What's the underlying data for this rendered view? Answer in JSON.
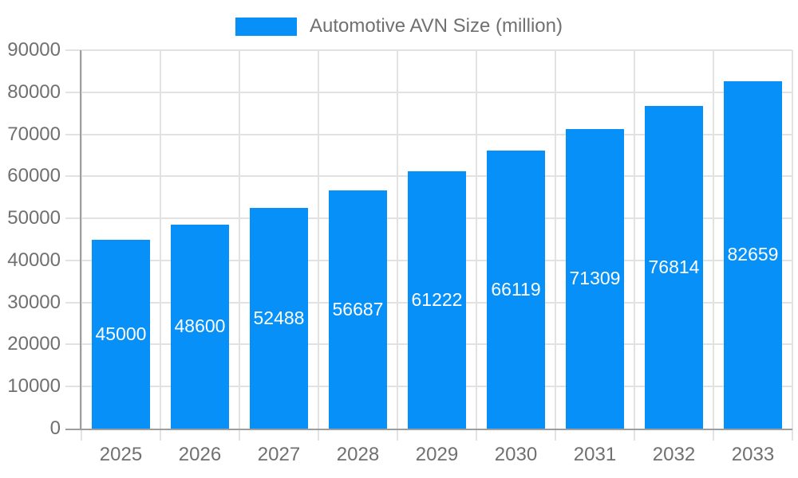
{
  "legend": {
    "label": "Automotive AVN Size (million)"
  },
  "colors": {
    "bar": "#0690F8",
    "grid": "#E2E2E2",
    "axis": "#9E9E9E",
    "text": "#707070",
    "value_label": "#FFFFFF",
    "background": "#FFFFFF"
  },
  "chart_data": {
    "type": "bar",
    "title": "",
    "series_name": "Automotive AVN Size (million)",
    "categories": [
      "2025",
      "2026",
      "2027",
      "2028",
      "2029",
      "2030",
      "2031",
      "2032",
      "2033"
    ],
    "values": [
      45000,
      48600,
      52488,
      56687,
      61222,
      66119,
      71309,
      76814,
      82659
    ],
    "xlabel": "",
    "ylabel": "",
    "ylim": [
      0,
      90000
    ],
    "ytick_step": 10000,
    "yticks": [
      0,
      10000,
      20000,
      30000,
      40000,
      50000,
      60000,
      70000,
      80000,
      90000
    ],
    "grid": true,
    "legend_position": "top",
    "value_labels": "centered-inside-bars"
  }
}
